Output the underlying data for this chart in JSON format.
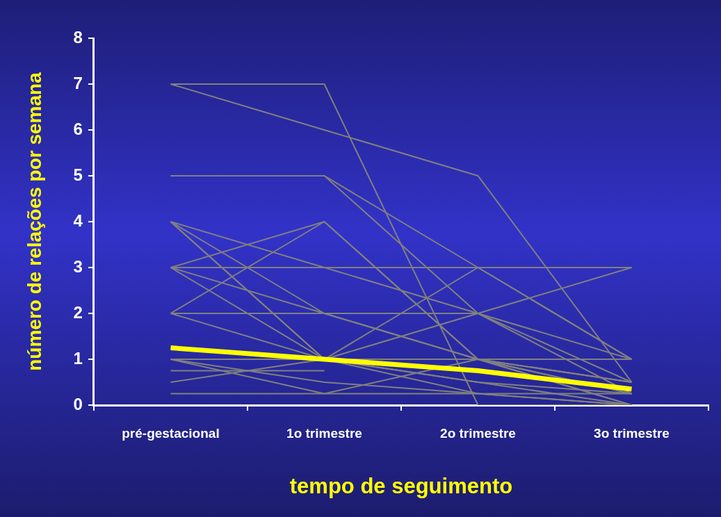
{
  "chart_data": {
    "type": "line",
    "xlabel": "tempo de seguimento",
    "ylabel": "número de relações por semana",
    "categories": [
      "pré-gestacional",
      "1o trimestre",
      "2o trimestre",
      "3o trimestre"
    ],
    "ylim": [
      0,
      8
    ],
    "yticks": [
      0,
      1,
      2,
      3,
      4,
      5,
      6,
      7,
      8
    ],
    "grid": false,
    "legend": false,
    "marker": "none",
    "series": [
      {
        "color": "#808080",
        "values": [
          7,
          7,
          0,
          0
        ]
      },
      {
        "color": "#808080",
        "values": [
          7,
          6,
          5,
          0.5
        ]
      },
      {
        "color": "#808080",
        "values": [
          5,
          5,
          3,
          1
        ]
      },
      {
        "color": "#808080",
        "values": [
          5,
          5,
          2,
          0.25
        ]
      },
      {
        "color": "#808080",
        "values": [
          3,
          4,
          1,
          0.25
        ]
      },
      {
        "color": "#808080",
        "values": [
          3,
          3,
          3,
          3
        ]
      },
      {
        "color": "#808080",
        "values": [
          4,
          3,
          2,
          0.5
        ]
      },
      {
        "color": "#808080",
        "values": [
          4,
          1,
          0.5,
          0
        ]
      },
      {
        "color": "#808080",
        "values": [
          4,
          2,
          1,
          0.25
        ]
      },
      {
        "color": "#808080",
        "values": [
          2,
          4,
          1,
          0
        ]
      },
      {
        "color": "#808080",
        "values": [
          3,
          2,
          1,
          0.5
        ]
      },
      {
        "color": "#808080",
        "values": [
          3,
          1,
          0.25,
          0
        ]
      },
      {
        "color": "#808080",
        "values": [
          2,
          2,
          2,
          1
        ]
      },
      {
        "color": "#808080",
        "values": [
          2,
          1,
          3,
          1
        ]
      },
      {
        "color": "#808080",
        "values": [
          1,
          1,
          2,
          3
        ]
      },
      {
        "color": "#808080",
        "values": [
          1,
          1,
          1,
          1
        ]
      },
      {
        "color": "#808080",
        "values": [
          1,
          0.5,
          0.25,
          0
        ]
      },
      {
        "color": "#808080",
        "values": [
          0.75,
          0.75,
          null,
          null
        ]
      },
      {
        "color": "#808080",
        "values": [
          0.5,
          1,
          0.5,
          0.25
        ]
      },
      {
        "color": "#808080",
        "values": [
          0.25,
          0.25,
          0.25,
          0.25
        ]
      },
      {
        "color": "#808080",
        "values": [
          1,
          0.25,
          1,
          0
        ]
      },
      {
        "color": "#808080",
        "values": [
          4,
          1,
          1,
          0.5
        ]
      },
      {
        "color": "#ffff00",
        "values": [
          1.25,
          1,
          0.75,
          0.35
        ]
      }
    ]
  }
}
